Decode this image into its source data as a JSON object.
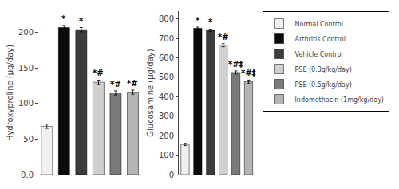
{
  "chart_data": [
    {
      "type": "bar",
      "categories": [
        "Normal Control",
        "Arthritis Control",
        "Vehicle Control",
        "PSE (0.3g/kg/day)",
        "PSE (0.5g/kg/day)",
        "Indomethacin (1mg/kg/day)"
      ],
      "values": [
        68,
        207,
        204,
        130,
        115,
        116
      ],
      "errors": [
        3,
        3,
        3,
        3,
        3,
        3
      ],
      "colors": [
        "#f0f0f0",
        "#0a0a0a",
        "#3c3c3c",
        "#d0d0d0",
        "#7a7a7a",
        "#b4b4b4"
      ],
      "ylabel": "Hydroxyproline (μg/day)",
      "ylim": [
        0.0,
        230
      ],
      "yticks": [
        {
          "value": 0.0,
          "label": "0.0"
        },
        50,
        100,
        150,
        200
      ],
      "annotations": [
        {
          "category": "Arthritis Control",
          "text": "*"
        },
        {
          "category": "Vehicle Control",
          "text": "*"
        },
        {
          "category": "PSE (0.3g/kg/day)",
          "text": "*#"
        },
        {
          "category": "PSE (0.5g/kg/day)",
          "text": "*#"
        },
        {
          "category": "Indomethacin (1mg/kg/day)",
          "text": "*#"
        }
      ],
      "tick_labels": "y",
      "grid": false
    },
    {
      "type": "bar",
      "categories": [
        "Normal Control",
        "Arthritis Control",
        "Vehicle Control",
        "PSE (0.3g/kg/day)",
        "PSE (0.5g/kg/day)",
        "Indomethacin (1mg/kg/day)"
      ],
      "values": [
        155,
        752,
        742,
        665,
        525,
        478
      ],
      "errors": [
        6,
        6,
        6,
        8,
        8,
        8
      ],
      "colors": [
        "#f0f0f0",
        "#0a0a0a",
        "#3c3c3c",
        "#d0d0d0",
        "#7a7a7a",
        "#b4b4b4"
      ],
      "ylabel": "Glucosamine (μg/day)",
      "ylim": [
        0,
        840
      ],
      "yticks": [
        0,
        100,
        200,
        300,
        400,
        500,
        600,
        700,
        800
      ],
      "annotations": [
        {
          "category": "Arthritis Control",
          "text": "*"
        },
        {
          "category": "Vehicle Control",
          "text": "*"
        },
        {
          "category": "PSE (0.3g/kg/day)",
          "text": "*#"
        },
        {
          "category": "PSE (0.5g/kg/day)",
          "text": "*#‡"
        },
        {
          "category": "Indomethacin (1mg/kg/day)",
          "text": "*#‡"
        }
      ],
      "tick_labels": "y",
      "grid": false,
      "legend": "upper right"
    }
  ]
}
